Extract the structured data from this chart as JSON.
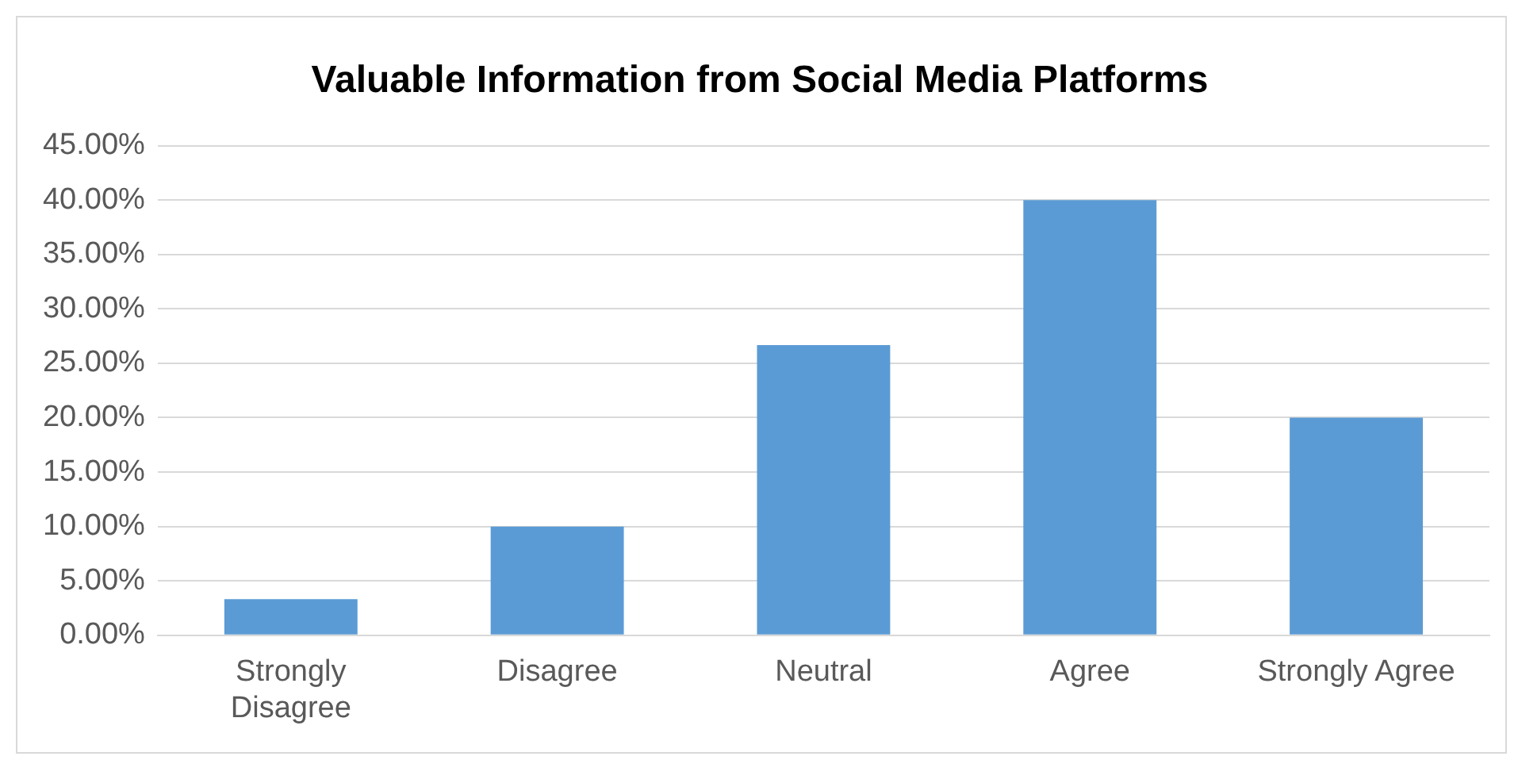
{
  "chart_data": {
    "type": "bar",
    "title": "Valuable Information from Social Media Platforms",
    "categories": [
      "Strongly Disagree",
      "Disagree",
      "Neutral",
      "Agree",
      "Strongly Agree"
    ],
    "values": [
      3.33,
      10,
      26.67,
      40,
      20
    ],
    "color": "#5b9bd5",
    "ylim": [
      0,
      45
    ],
    "yticks": [
      {
        "value": 0,
        "label": "0.00%"
      },
      {
        "value": 5,
        "label": "5.00%"
      },
      {
        "value": 10,
        "label": "10.00%"
      },
      {
        "value": 15,
        "label": "15.00%"
      },
      {
        "value": 20,
        "label": "20.00%"
      },
      {
        "value": 25,
        "label": "25.00%"
      },
      {
        "value": 30,
        "label": "30.00%"
      },
      {
        "value": 35,
        "label": "35.00%"
      },
      {
        "value": 40,
        "label": "40.00%"
      },
      {
        "value": 45,
        "label": "45.00%"
      }
    ],
    "grid": "y",
    "legend": false
  }
}
